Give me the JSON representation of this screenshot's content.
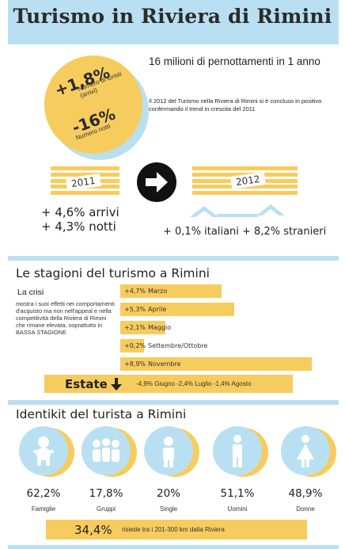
{
  "header": {
    "title": "Turismo in Riviera di Rimini"
  },
  "badge": {
    "arrivals_pct": "+1,8%",
    "arrivals_label": "Numero di turisti\n(arrivi)",
    "nights_pct": "-16%",
    "nights_label": "Numero notti"
  },
  "intro": {
    "headline": "16 milioni di pernottamenti in 1 anno",
    "paragraph": "Il 2012 del Turismo nella Riviera di Rimini si è concluso in positivo confermando il trend in crescita del 2011"
  },
  "compare": {
    "year_left": "2011",
    "year_right": "2012",
    "left_line1": "+ 4,6% arrivi",
    "left_line2": "+ 4,3% notti",
    "right_line": "+ 0,1% italiani + 8,2% stranieri"
  },
  "seasons": {
    "title": "Le stagioni del turismo a Rimini",
    "crisis_heading": "La crisi",
    "crisis_text": "mostra i suoi effetti nei comportamenti d'acquisto ma non nell'appeal e nella competitività della Riviera di Rimini che rimane elevata, soprattutto in BASSA STAGIONE",
    "bars": [
      {
        "pct": "+4,7%",
        "label": "Marzo",
        "value": 4.7
      },
      {
        "pct": "+5,3%",
        "label": "Aprile",
        "value": 5.3
      },
      {
        "pct": "+2,1%",
        "label": "Maggio",
        "value": 2.1
      },
      {
        "pct": "+0,2%",
        "label": "Settembre/Ottobre",
        "value": 0.2
      },
      {
        "pct": "+8,9%",
        "label": "Novembre",
        "value": 8.9
      }
    ],
    "summer_label": "Estate",
    "summer_values": "-4,9% Giugno -2,4% Luglio -1,4% Agosto"
  },
  "identikit": {
    "title": "Identikit del turista a Rimini",
    "items": [
      {
        "icon": "baby-icon",
        "pct": "62,2%",
        "label": "Famiglie"
      },
      {
        "icon": "group-icon",
        "pct": "17,8%",
        "label": "Gruppi"
      },
      {
        "icon": "single-person-icon",
        "pct": "20%",
        "label": "Single"
      },
      {
        "icon": "man-icon",
        "pct": "51,1%",
        "label": "Uomini"
      },
      {
        "icon": "woman-icon",
        "pct": "48,9%",
        "label": "Donne"
      }
    ],
    "distance_pct": "34,4%",
    "distance_text": "risiede tra i 201-300 km dalla Riviera"
  },
  "colors": {
    "yellow": "#f7cc5e",
    "blue": "#b9e0f2",
    "dark": "#222222"
  }
}
